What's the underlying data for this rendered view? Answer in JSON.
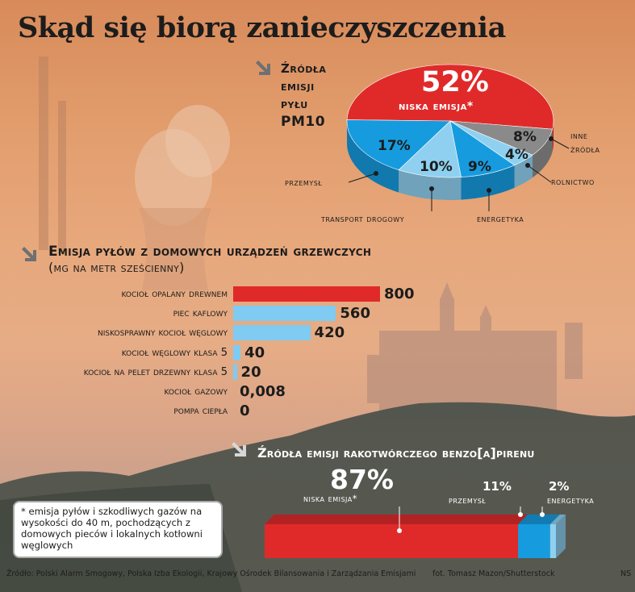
{
  "title": "Skąd się biorą zanieczyszczenia",
  "colors": {
    "red": "#e02a2a",
    "blue": "#169bdf",
    "light_blue": "#8fd0f0",
    "gray": "#8a8a8a",
    "text": "#1c1c1c"
  },
  "icons": {
    "section_arrow": "arrow-down-right-icon"
  },
  "pie_section": {
    "title_lines": [
      "Źródła",
      "emisji",
      "pyłu",
      "PM10"
    ]
  },
  "bars_section": {
    "title": "Emisja pyłów z domowych urządzeń grzewczych",
    "subtitle": "(mg na metr sześcienny)"
  },
  "benzo_section": {
    "title": "Źródła emisji rakotwórczego benzo[a]pirenu"
  },
  "footnote": "* emisja pyłów i szkodliwych gazów na wysokości do 40 m, pochodzących z domowych pieców i lokalnych kotłowni węglowych",
  "source": "Źródło: Polski Alarm Smogowy, Polska Izba Ekologii, Krajowy Ośrodek Bilansowania i Zarządzania Emisjami",
  "photo_credit": "fot. Tomasz Mazon/Shutterstock",
  "initials": "NS",
  "chart_data": [
    {
      "type": "pie",
      "title": "Źródła emisji pyłu PM10",
      "slices": [
        {
          "label": "niska emisja*",
          "value": 52,
          "display": "52%",
          "color": "#e02a2a"
        },
        {
          "label": "inne źródła",
          "label_lines": [
            "inne",
            "źródła"
          ],
          "value": 8,
          "display": "8%",
          "color": "#8a8a8a"
        },
        {
          "label": "rolnictwo",
          "value": 4,
          "display": "4%",
          "color": "#8fd0f0"
        },
        {
          "label": "energetyka",
          "value": 9,
          "display": "9%",
          "color": "#169bdf"
        },
        {
          "label": "transport drogowy",
          "value": 10,
          "display": "10%",
          "color": "#8fd0f0"
        },
        {
          "label": "przemysł",
          "value": 17,
          "display": "17%",
          "color": "#169bdf"
        }
      ]
    },
    {
      "type": "bar",
      "orientation": "horizontal",
      "title": "Emisja pyłów z domowych urządzeń grzewczych",
      "ylabel": "(mg na metr sześcienny)",
      "xlim": [
        0,
        800
      ],
      "categories": [
        "kocioł opalany drewnem",
        "piec kaflowy",
        "niskosprawny kocioł węglowy",
        "kocioł węglowy klasa 5",
        "kocioł na pelet drzewny klasa 5",
        "kocioł gazowy",
        "pompa ciepła"
      ],
      "values": [
        800,
        560,
        420,
        40,
        20,
        0.008,
        0
      ],
      "display": [
        "800",
        "560",
        "420",
        "40",
        "20",
        "0,008",
        "0"
      ],
      "colors": [
        "#e02a2a",
        "#7fcbf2",
        "#7fcbf2",
        "#7fcbf2",
        "#7fcbf2",
        "#7fcbf2",
        "#7fcbf2"
      ]
    },
    {
      "type": "bar",
      "orientation": "stacked-horizontal",
      "title": "Źródła emisji rakotwórczego benzo[a]pirenu",
      "segments": [
        {
          "label": "niska emisja*",
          "value": 87,
          "display": "87%",
          "color": "#e02a2a"
        },
        {
          "label": "przemysł",
          "value": 11,
          "display": "11%",
          "color": "#169bdf"
        },
        {
          "label": "energetyka",
          "value": 2,
          "display": "2%",
          "color": "#8fd0f0"
        }
      ]
    }
  ]
}
